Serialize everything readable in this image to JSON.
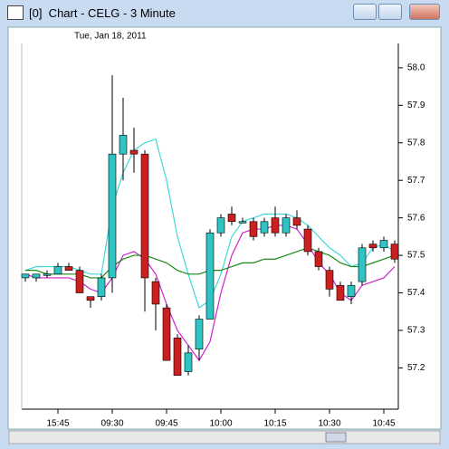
{
  "window": {
    "title": "[0]  Chart - CELG - 3 Minute"
  },
  "chart_data": {
    "type": "candlestick",
    "subtitle": "Tue, Jan 18, 2011",
    "categories": [
      null,
      null,
      null,
      "15:45",
      null,
      null,
      null,
      null,
      "09:30",
      null,
      null,
      null,
      null,
      "09:45",
      null,
      null,
      null,
      null,
      "10:00",
      null,
      null,
      null,
      null,
      "10:15",
      null,
      null,
      null,
      null,
      "10:30",
      null,
      null,
      null,
      null,
      "10:45",
      null
    ],
    "open": [
      57.44,
      57.44,
      57.45,
      57.45,
      57.47,
      57.46,
      57.39,
      57.39,
      57.44,
      57.77,
      57.78,
      57.77,
      57.43,
      57.36,
      57.28,
      57.19,
      57.25,
      57.33,
      57.56,
      57.61,
      57.59,
      57.59,
      57.56,
      57.6,
      57.56,
      57.6,
      57.57,
      57.51,
      57.46,
      57.42,
      57.39,
      57.43,
      57.53,
      57.52,
      57.53
    ],
    "high": [
      57.45,
      57.45,
      57.46,
      57.48,
      57.48,
      57.47,
      57.39,
      57.45,
      57.98,
      57.92,
      57.84,
      57.78,
      57.44,
      57.37,
      57.29,
      57.26,
      57.34,
      57.57,
      57.61,
      57.63,
      57.6,
      57.6,
      57.6,
      57.63,
      57.61,
      57.62,
      57.58,
      57.52,
      57.47,
      57.43,
      57.43,
      57.53,
      57.54,
      57.55,
      57.54
    ],
    "low": [
      57.43,
      57.43,
      57.44,
      57.45,
      57.46,
      57.4,
      57.36,
      57.38,
      57.4,
      57.7,
      57.72,
      57.35,
      57.3,
      57.22,
      57.18,
      57.18,
      57.22,
      57.33,
      57.55,
      57.58,
      57.59,
      57.54,
      57.55,
      57.55,
      57.55,
      57.57,
      57.5,
      57.46,
      57.39,
      57.38,
      57.37,
      57.42,
      57.51,
      57.51,
      57.48
    ],
    "close": [
      57.45,
      57.45,
      57.45,
      57.47,
      57.46,
      57.4,
      57.38,
      57.44,
      57.77,
      57.82,
      57.77,
      57.44,
      57.37,
      57.22,
      57.18,
      57.24,
      57.33,
      57.56,
      57.6,
      57.59,
      57.59,
      57.55,
      57.59,
      57.56,
      57.6,
      57.58,
      57.51,
      57.47,
      57.41,
      57.38,
      57.42,
      57.52,
      57.52,
      57.54,
      57.49
    ],
    "up_color": "#2ec4c4",
    "down_color": "#cc1f1f",
    "series": [
      {
        "color": "#40d8d8",
        "values": [
          57.46,
          57.47,
          57.47,
          57.47,
          57.47,
          57.46,
          57.45,
          57.45,
          57.63,
          57.72,
          57.78,
          57.8,
          57.81,
          57.7,
          57.55,
          57.45,
          57.36,
          57.38,
          57.45,
          57.55,
          57.59,
          57.6,
          57.61,
          57.61,
          57.61,
          57.6,
          57.58,
          57.55,
          57.52,
          57.5,
          57.47,
          57.48,
          57.52,
          57.53,
          57.51
        ]
      },
      {
        "color": "#d020d0",
        "values": [
          57.45,
          57.44,
          57.44,
          57.44,
          57.44,
          57.43,
          57.41,
          57.4,
          57.44,
          57.5,
          57.51,
          57.49,
          57.45,
          57.37,
          57.3,
          57.26,
          57.22,
          57.27,
          57.4,
          57.5,
          57.56,
          57.57,
          57.57,
          57.58,
          57.58,
          57.57,
          57.53,
          57.48,
          57.45,
          57.4,
          57.38,
          57.42,
          57.43,
          57.44,
          57.47
        ]
      },
      {
        "color": "#1a8a1a",
        "values": [
          57.46,
          57.46,
          57.45,
          57.45,
          57.45,
          57.45,
          57.44,
          57.44,
          57.47,
          57.49,
          57.5,
          57.5,
          57.49,
          57.48,
          57.46,
          57.45,
          57.45,
          57.46,
          57.46,
          57.47,
          57.48,
          57.48,
          57.49,
          57.49,
          57.5,
          57.51,
          57.52,
          57.51,
          57.5,
          57.48,
          57.47,
          57.47,
          57.48,
          57.49,
          57.5
        ]
      }
    ],
    "ylim": [
      57.09,
      58.06
    ],
    "yticks": [
      57.2,
      57.3,
      57.4,
      57.5,
      57.6,
      57.7,
      57.8,
      57.9,
      {
        "value": 58,
        "label": "58.0"
      }
    ]
  }
}
